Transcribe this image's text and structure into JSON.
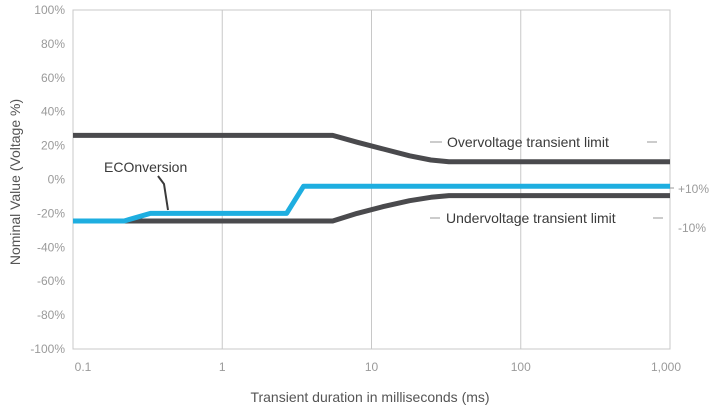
{
  "chart_data": {
    "type": "line",
    "xscale": "log",
    "xlim": [
      0.1,
      1000
    ],
    "ylim": [
      -100,
      100
    ],
    "xlabel": "Transient duration in milliseconds (ms)",
    "ylabel": "Nominal Value (Voltage %)",
    "x_ticks": [
      0.1,
      1,
      10,
      100,
      1000
    ],
    "x_tick_labels": [
      "0.1",
      "1",
      "10",
      "100",
      "1,000"
    ],
    "y_ticks": [
      100,
      80,
      60,
      40,
      20,
      0,
      -20,
      -40,
      -60,
      -80,
      -100
    ],
    "y_tick_labels": [
      "100%",
      "80%",
      "60%",
      "40%",
      "20%",
      "0%",
      "-20%",
      "-40%",
      "-60%",
      "-80%",
      "-100%"
    ],
    "grid": true,
    "series": [
      {
        "name": "Overvoltage transient limit",
        "color": "#4a4a4d",
        "points": [
          [
            0.1,
            26
          ],
          [
            5.5,
            26
          ],
          [
            8,
            22
          ],
          [
            12,
            18
          ],
          [
            18,
            14
          ],
          [
            25,
            11.5
          ],
          [
            33,
            10.5
          ],
          [
            1000,
            10.5
          ]
        ]
      },
      {
        "name": "Undervoltage transient limit",
        "color": "#4a4a4d",
        "points": [
          [
            0.1,
            -24.5
          ],
          [
            5.5,
            -24.5
          ],
          [
            8,
            -20
          ],
          [
            12,
            -16
          ],
          [
            18,
            -12.5
          ],
          [
            25,
            -10.5
          ],
          [
            33,
            -9.5
          ],
          [
            1000,
            -9.5
          ]
        ]
      },
      {
        "name": "ECOnversion",
        "color": "#1eaee0",
        "points": [
          [
            0.1,
            -24.5
          ],
          [
            0.22,
            -24.5
          ],
          [
            0.33,
            -20
          ],
          [
            2.7,
            -20
          ],
          [
            3.5,
            -4
          ],
          [
            1000,
            -4
          ]
        ]
      }
    ],
    "annotations": {
      "overvoltage": "Overvoltage transient limit",
      "undervoltage": "Undervoltage transient limit",
      "econversion": "ECOnversion",
      "plus10": "+10%",
      "minus10": "-10%"
    }
  }
}
